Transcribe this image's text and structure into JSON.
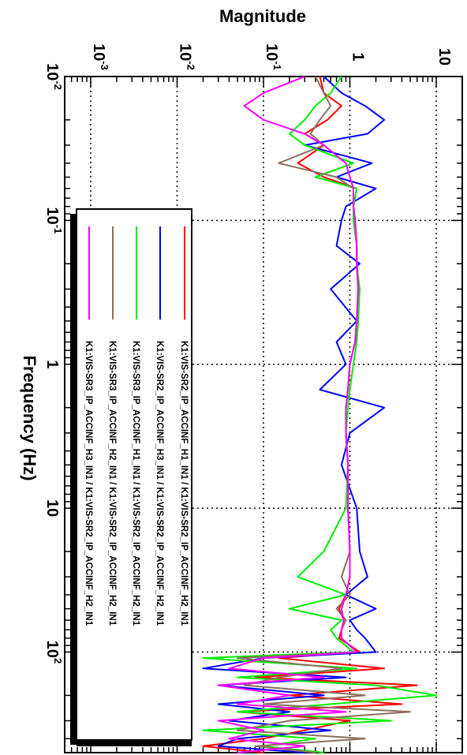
{
  "chart_data": {
    "type": "line",
    "orientation": "rotated-90",
    "title": "",
    "xlabel": "Frequency (Hz)",
    "ylabel": "Magnitude",
    "x_scale": "log",
    "y_scale": "log",
    "xlim": [
      0.01,
      500
    ],
    "ylim": [
      0.0005,
      20
    ],
    "grid": true,
    "legend_position": "bottom-left",
    "x_ticks": [
      {
        "value": 0.01,
        "base": "10",
        "exp": "-2"
      },
      {
        "value": 0.1,
        "base": "10",
        "exp": "-1"
      },
      {
        "value": 1,
        "base": "1",
        "exp": ""
      },
      {
        "value": 10,
        "base": "10",
        "exp": ""
      },
      {
        "value": 100,
        "base": "10",
        "exp": "2"
      }
    ],
    "y_ticks": [
      {
        "value": 0.001,
        "base": "10",
        "exp": "-3"
      },
      {
        "value": 0.01,
        "base": "10",
        "exp": "-2"
      },
      {
        "value": 0.1,
        "base": "10",
        "exp": "-1"
      },
      {
        "value": 1,
        "base": "1",
        "exp": ""
      },
      {
        "value": 10,
        "base": "10",
        "exp": ""
      }
    ],
    "series": [
      {
        "name": "K1:VIS-SR2_IP_ACCINF_H1_IN1 / K1:VIS-SR2_IP_ACCINF_H2_IN1",
        "color": "#ff0000",
        "x": [
          0.01,
          0.013,
          0.016,
          0.02,
          0.025,
          0.03,
          0.04,
          0.05,
          0.06,
          0.08,
          0.1,
          0.15,
          0.2,
          0.3,
          0.5,
          0.7,
          1,
          1.5,
          2,
          3,
          5,
          10,
          20,
          30,
          40,
          50,
          60,
          70,
          80,
          100,
          110,
          130,
          150,
          170,
          200,
          230,
          260,
          300,
          350,
          400,
          450,
          500
        ],
        "y": [
          0.45,
          0.5,
          0.8,
          0.55,
          0.3,
          0.5,
          0.25,
          0.5,
          1.2,
          1.1,
          1.15,
          1.2,
          1.2,
          1.25,
          1.2,
          1.15,
          1.0,
          0.95,
          0.9,
          0.9,
          0.95,
          0.95,
          1.0,
          1.0,
          0.9,
          0.75,
          0.85,
          0.8,
          0.75,
          1.3,
          0.15,
          2.5,
          0.08,
          6.0,
          0.2,
          4.0,
          0.05,
          1.0,
          0.3,
          0.1,
          0.02,
          0.1
        ]
      },
      {
        "name": "K1:VIS-SR2_IP_ACCINF_H3_IN1 / K1:VIS-SR2_IP_ACCINF_H2_IN1",
        "color": "#0000ff",
        "x": [
          0.01,
          0.013,
          0.016,
          0.02,
          0.025,
          0.03,
          0.04,
          0.05,
          0.06,
          0.08,
          0.1,
          0.15,
          0.2,
          0.3,
          0.5,
          0.7,
          1,
          1.5,
          2,
          3,
          5,
          10,
          20,
          30,
          40,
          50,
          60,
          70,
          80,
          100,
          110,
          130,
          150,
          170,
          200,
          230,
          260,
          300,
          350,
          400,
          450,
          500
        ],
        "y": [
          0.5,
          0.8,
          1.5,
          2.5,
          1.6,
          0.3,
          1.8,
          0.7,
          2.0,
          0.9,
          0.8,
          0.7,
          1.3,
          0.6,
          1.2,
          0.7,
          0.9,
          0.45,
          2.5,
          1.0,
          0.8,
          1.2,
          1.3,
          1.6,
          0.9,
          2.0,
          1.0,
          1.2,
          1.5,
          2.0,
          0.1,
          0.02,
          0.9,
          0.03,
          0.5,
          0.03,
          0.2,
          0.04,
          0.6,
          0.05,
          0.03,
          0.3
        ]
      },
      {
        "name": "K1:VIS-SR3_IP_ACCINF_H1_IN1 / K1:VIS-SR2_IP_ACCINF_H2_IN1",
        "color": "#00ee00",
        "x": [
          0.01,
          0.013,
          0.016,
          0.02,
          0.025,
          0.03,
          0.04,
          0.05,
          0.06,
          0.08,
          0.1,
          0.15,
          0.2,
          0.3,
          0.5,
          0.7,
          1,
          1.5,
          2,
          3,
          5,
          10,
          20,
          30,
          40,
          50,
          60,
          70,
          80,
          100,
          110,
          130,
          150,
          170,
          200,
          230,
          260,
          300,
          350,
          400,
          450,
          500
        ],
        "y": [
          0.8,
          0.6,
          0.4,
          0.3,
          0.2,
          0.3,
          1.1,
          0.4,
          1.2,
          1.1,
          1.1,
          1.2,
          1.2,
          1.3,
          1.25,
          1.2,
          1.1,
          1.0,
          0.95,
          0.9,
          0.95,
          0.9,
          0.5,
          0.25,
          0.9,
          0.2,
          0.8,
          0.6,
          0.7,
          1.1,
          0.02,
          1.2,
          0.05,
          2.0,
          10.0,
          0.6,
          0.05,
          3.0,
          0.02,
          0.4,
          0.1,
          0.5
        ]
      },
      {
        "name": "K1:VIS-SR3_IP_ACCINF_H2_IN1 / K1:VIS-SR2_IP_ACCINF_H2_IN1",
        "color": "#8b6e5e",
        "x": [
          0.01,
          0.013,
          0.016,
          0.02,
          0.025,
          0.03,
          0.04,
          0.05,
          0.06,
          0.08,
          0.1,
          0.15,
          0.2,
          0.3,
          0.5,
          0.7,
          1,
          1.5,
          2,
          3,
          5,
          10,
          20,
          30,
          40,
          50,
          60,
          70,
          80,
          100,
          110,
          130,
          150,
          170,
          200,
          230,
          260,
          300,
          350,
          400,
          450,
          500
        ],
        "y": [
          0.4,
          0.5,
          0.6,
          0.45,
          0.35,
          0.5,
          0.15,
          0.7,
          1.1,
          1.1,
          1.15,
          1.2,
          1.2,
          1.25,
          1.2,
          1.15,
          1.0,
          0.95,
          0.9,
          0.9,
          0.95,
          0.95,
          1.0,
          0.8,
          1.0,
          0.7,
          0.9,
          0.8,
          0.8,
          1.2,
          0.05,
          0.8,
          0.15,
          0.06,
          1.5,
          0.1,
          5.0,
          0.2,
          0.05,
          1.5,
          0.08,
          0.4
        ]
      },
      {
        "name": "K1:VIS-SR3_IP_ACCINF_H3_IN1 / K1:VIS-SR2_IP_ACCINF_H2_IN1",
        "color": "#ff00ff",
        "x": [
          0.01,
          0.013,
          0.016,
          0.02,
          0.025,
          0.03,
          0.04,
          0.05,
          0.06,
          0.08,
          0.1,
          0.15,
          0.2,
          0.3,
          0.5,
          0.7,
          1,
          1.5,
          2,
          3,
          5,
          10,
          20,
          30,
          40,
          50,
          60,
          70,
          80,
          100,
          110,
          130,
          150,
          170,
          200,
          230,
          260,
          300,
          350,
          400,
          450,
          500
        ],
        "y": [
          0.3,
          0.1,
          0.06,
          0.1,
          0.3,
          0.5,
          0.9,
          1.0,
          1.1,
          1.1,
          1.15,
          1.2,
          1.2,
          1.25,
          1.2,
          1.15,
          1.0,
          0.95,
          0.9,
          0.9,
          0.95,
          0.95,
          1.0,
          1.0,
          0.9,
          0.8,
          0.85,
          0.8,
          0.8,
          1.2,
          0.1,
          0.04,
          0.5,
          0.03,
          0.2,
          0.05,
          0.9,
          0.03,
          0.1,
          0.04,
          0.3,
          0.05
        ]
      }
    ]
  }
}
